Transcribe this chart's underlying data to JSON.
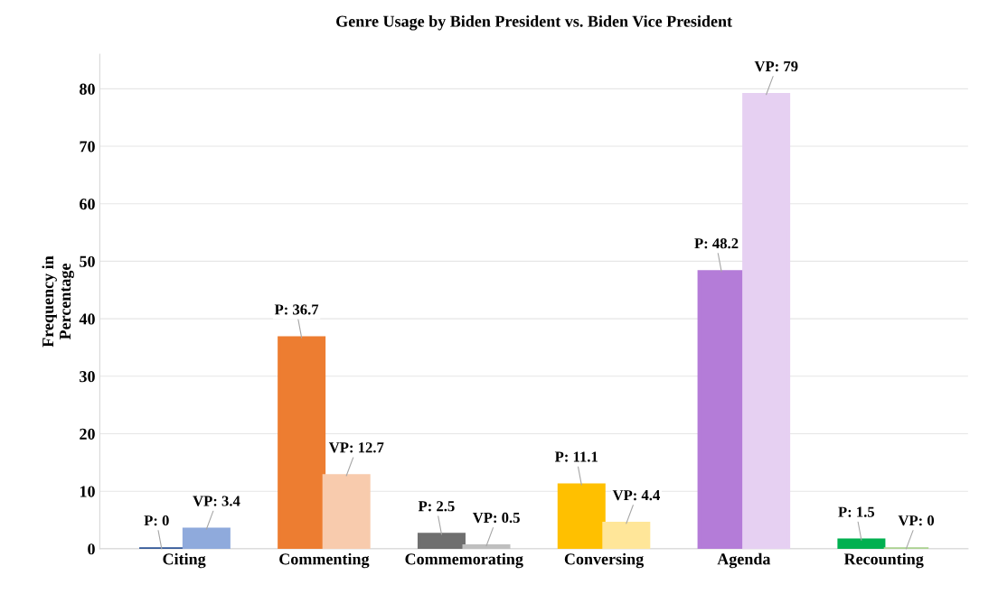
{
  "chart_data": {
    "type": "bar",
    "title": "Genre Usage by Biden President vs. Biden Vice President",
    "ylabel": "Frequency in\nPercentage",
    "categories": [
      "Citing",
      "Commenting",
      "Commemorating",
      "Conversing",
      "Agenda",
      "Recounting"
    ],
    "series": [
      {
        "colors": [
          "#2f5597",
          "#ed7d31",
          "#6f6f6f",
          "#ffc000",
          "#b47cd8",
          "#00b050"
        ],
        "values": [
          0,
          36.7,
          2.5,
          11.1,
          48.2,
          1.5
        ],
        "value_labels": [
          "P: 0",
          "P: 36.7",
          "P: 2.5",
          "P: 11.1",
          "P: 48.2",
          "P: 1.5"
        ]
      },
      {
        "colors": [
          "#8faadc",
          "#f8cbad",
          "#bfbfbf",
          "#ffe699",
          "#e6d0f2",
          "#a9d18e"
        ],
        "values": [
          3.4,
          12.7,
          0.5,
          4.4,
          79,
          0
        ],
        "value_labels": [
          "VP: 3.4",
          "VP: 12.7",
          "VP: 0.5",
          "VP: 4.4",
          "VP: 79",
          "VP: 0"
        ]
      }
    ],
    "ylim": [
      0,
      86
    ],
    "yticks": [
      0,
      10,
      20,
      30,
      40,
      50,
      60,
      70,
      80
    ],
    "grid": "y"
  }
}
